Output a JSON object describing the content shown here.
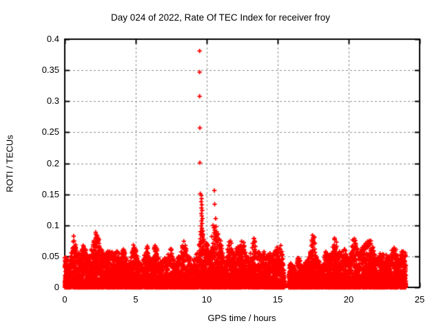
{
  "chart_data": {
    "type": "scatter",
    "title": "Day 024 of 2022, Rate Of TEC Index for receiver froy",
    "xlabel": "GPS time / hours",
    "ylabel": "ROTI / TECUs",
    "xlim": [
      0,
      25
    ],
    "ylim": [
      0,
      0.4
    ],
    "xticks": [
      0,
      5,
      10,
      15,
      20,
      25
    ],
    "xtick_labels": [
      "0",
      "5",
      "10",
      "15",
      "20",
      "25"
    ],
    "yticks": [
      0,
      0.05,
      0.1,
      0.15,
      0.2,
      0.25,
      0.3,
      0.35,
      0.4
    ],
    "ytick_labels": [
      "0",
      "0.05",
      "0.1",
      "0.15",
      "0.2",
      "0.25",
      "0.3",
      "0.35",
      "0.4"
    ],
    "grid": {
      "show": true,
      "color": "#8c8c8c",
      "style": "dashed"
    },
    "frame_color": "#000000",
    "background": "#ffffff",
    "marker": {
      "shape": "plus",
      "color": "#ff0000",
      "size": 7
    },
    "series_name": "ROTI",
    "x_data_range": [
      0,
      24.05
    ],
    "data_gap_hours": [
      15.47,
      15.77
    ],
    "gap_floor_fraction": 0.12,
    "band_envelope": [
      [
        0,
        0.046
      ],
      [
        0.35,
        0.05
      ],
      [
        0.6,
        0.074
      ],
      [
        0.85,
        0.055
      ],
      [
        1.1,
        0.048
      ],
      [
        1.35,
        0.062
      ],
      [
        1.7,
        0.048
      ],
      [
        2.0,
        0.056
      ],
      [
        2.2,
        0.076
      ],
      [
        2.45,
        0.062
      ],
      [
        2.8,
        0.042
      ],
      [
        3.1,
        0.05
      ],
      [
        3.5,
        0.052
      ],
      [
        3.85,
        0.067
      ],
      [
        4.2,
        0.048
      ],
      [
        4.6,
        0.05
      ],
      [
        4.9,
        0.062
      ],
      [
        5.15,
        0.063
      ],
      [
        5.4,
        0.05
      ],
      [
        5.65,
        0.06
      ],
      [
        6.0,
        0.048
      ],
      [
        6.3,
        0.066
      ],
      [
        6.65,
        0.05
      ],
      [
        6.9,
        0.056
      ],
      [
        7.2,
        0.046
      ],
      [
        7.5,
        0.056
      ],
      [
        7.8,
        0.046
      ],
      [
        8.1,
        0.052
      ],
      [
        8.4,
        0.073
      ],
      [
        8.7,
        0.052
      ],
      [
        9.0,
        0.056
      ],
      [
        9.25,
        0.07
      ],
      [
        9.5,
        0.092
      ],
      [
        9.7,
        0.105
      ],
      [
        9.9,
        0.07
      ],
      [
        10.15,
        0.072
      ],
      [
        10.45,
        0.09
      ],
      [
        10.6,
        0.1
      ],
      [
        10.8,
        0.085
      ],
      [
        11.0,
        0.065
      ],
      [
        11.25,
        0.055
      ],
      [
        11.5,
        0.06
      ],
      [
        11.75,
        0.068
      ],
      [
        12.0,
        0.077
      ],
      [
        12.25,
        0.08
      ],
      [
        12.5,
        0.065
      ],
      [
        12.75,
        0.058
      ],
      [
        13.0,
        0.06
      ],
      [
        13.3,
        0.082
      ],
      [
        13.55,
        0.068
      ],
      [
        13.8,
        0.055
      ],
      [
        14.1,
        0.058
      ],
      [
        14.4,
        0.05
      ],
      [
        14.7,
        0.052
      ],
      [
        15.0,
        0.065
      ],
      [
        15.25,
        0.075
      ],
      [
        15.45,
        0.042
      ],
      [
        15.8,
        0.036
      ],
      [
        16.1,
        0.048
      ],
      [
        16.4,
        0.05
      ],
      [
        16.7,
        0.048
      ],
      [
        17.0,
        0.052
      ],
      [
        17.3,
        0.05
      ],
      [
        17.55,
        0.08
      ],
      [
        17.8,
        0.055
      ],
      [
        18.1,
        0.05
      ],
      [
        18.45,
        0.062
      ],
      [
        18.75,
        0.055
      ],
      [
        19.0,
        0.066
      ],
      [
        19.3,
        0.06
      ],
      [
        19.6,
        0.052
      ],
      [
        19.85,
        0.062
      ],
      [
        20.1,
        0.055
      ],
      [
        20.4,
        0.072
      ],
      [
        20.7,
        0.05
      ],
      [
        20.95,
        0.058
      ],
      [
        21.25,
        0.062
      ],
      [
        21.55,
        0.07
      ],
      [
        21.8,
        0.062
      ],
      [
        22.05,
        0.062
      ],
      [
        22.35,
        0.05
      ],
      [
        22.65,
        0.044
      ],
      [
        22.95,
        0.05
      ],
      [
        23.25,
        0.055
      ],
      [
        23.55,
        0.068
      ],
      [
        23.8,
        0.078
      ],
      [
        24.05,
        0.06
      ]
    ],
    "outliers": [
      [
        9.5,
        0.381
      ],
      [
        9.5,
        0.347
      ],
      [
        9.5,
        0.308
      ],
      [
        9.52,
        0.257
      ],
      [
        9.52,
        0.201
      ],
      [
        9.55,
        0.151
      ],
      [
        9.62,
        0.148
      ],
      [
        9.64,
        0.143
      ],
      [
        9.61,
        0.138
      ],
      [
        9.66,
        0.133
      ],
      [
        9.63,
        0.128
      ],
      [
        9.68,
        0.124
      ],
      [
        9.62,
        0.119
      ],
      [
        9.65,
        0.115
      ],
      [
        9.7,
        0.111
      ],
      [
        9.63,
        0.107
      ],
      [
        9.67,
        0.103
      ],
      [
        9.61,
        0.099
      ],
      [
        9.66,
        0.095
      ],
      [
        9.72,
        0.091
      ],
      [
        9.64,
        0.087
      ],
      [
        9.69,
        0.084
      ],
      [
        9.56,
        0.09
      ],
      [
        9.58,
        0.085
      ],
      [
        10.54,
        0.156
      ],
      [
        10.56,
        0.134
      ],
      [
        10.63,
        0.111
      ],
      [
        10.45,
        0.1
      ],
      [
        10.5,
        0.096
      ],
      [
        10.57,
        0.092
      ],
      [
        10.52,
        0.088
      ],
      [
        10.6,
        0.085
      ],
      [
        10.66,
        0.098
      ],
      [
        10.7,
        0.09
      ],
      [
        10.74,
        0.084
      ],
      [
        10.36,
        0.082
      ]
    ],
    "noise": {
      "seed": 20220124,
      "n_base": 9200,
      "n_floor": 1400,
      "shape": 2.1
    }
  }
}
